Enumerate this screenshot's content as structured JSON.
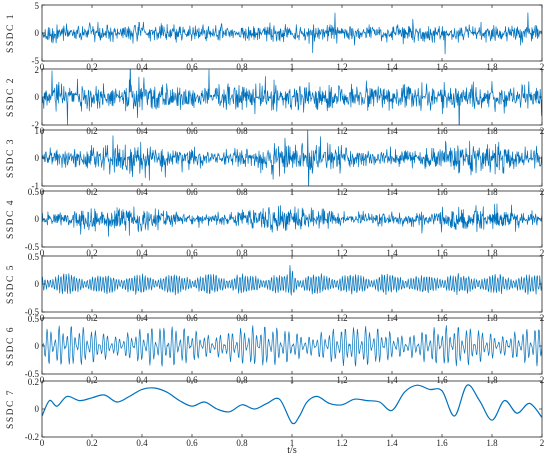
{
  "chart_data": [
    {
      "type": "line",
      "ylabel": "SSDC 1",
      "x_ticks": [
        "0",
        "0.2",
        "0.4",
        "0.6",
        "0.8",
        "1",
        "1.2",
        "1.4",
        "1.6",
        "1.8",
        "2"
      ],
      "y_ticks": [
        "-5",
        "0",
        "5"
      ],
      "xlim": [
        0,
        2
      ],
      "ylim": [
        -5,
        5
      ],
      "signal_amplitude": 1.3,
      "style": "broadband-noise-with-spikes",
      "color": "#0072BD"
    },
    {
      "type": "line",
      "ylabel": "SSDC 2",
      "x_ticks": [
        "0",
        "0.2",
        "0.4",
        "0.6",
        "0.8",
        "1",
        "1.2",
        "1.4",
        "1.6",
        "1.8",
        "2"
      ],
      "y_ticks": [
        "-2",
        "0",
        "2"
      ],
      "xlim": [
        0,
        2
      ],
      "ylim": [
        -2,
        2
      ],
      "signal_amplitude": 0.8,
      "style": "broadband-noise-with-spikes",
      "color": "#0072BD"
    },
    {
      "type": "line",
      "ylabel": "SSDC 3",
      "x_ticks": [
        "0",
        "0.2",
        "0.4",
        "0.6",
        "0.8",
        "1",
        "1.2",
        "1.4",
        "1.6",
        "1.8",
        "2"
      ],
      "y_ticks": [
        "-1",
        "0",
        "1"
      ],
      "xlim": [
        0,
        2
      ],
      "ylim": [
        -1,
        1
      ],
      "signal_amplitude": 0.45,
      "style": "broadband-noise",
      "color": "#0072BD"
    },
    {
      "type": "line",
      "ylabel": "SSDC 4",
      "x_ticks": [
        "0",
        "0.2",
        "0.4",
        "0.6",
        "0.8",
        "1",
        "1.2",
        "1.4",
        "1.6",
        "1.8",
        "2"
      ],
      "y_ticks": [
        "-0.5",
        "0",
        "0.5"
      ],
      "xlim": [
        0,
        2
      ],
      "ylim": [
        -0.5,
        0.5
      ],
      "signal_amplitude": 0.17,
      "style": "broadband-noise",
      "color": "#0072BD"
    },
    {
      "type": "line",
      "ylabel": "SSDC 5",
      "x_ticks": [
        "0",
        "0.2",
        "0.4",
        "0.6",
        "0.8",
        "1",
        "1.2",
        "1.4",
        "1.6",
        "1.8",
        "2"
      ],
      "y_ticks": [
        "-0.5",
        "0",
        "0.5"
      ],
      "xlim": [
        0,
        2
      ],
      "ylim": [
        -0.5,
        0.5
      ],
      "signal_amplitude": 0.2,
      "style": "bursty-oscillation",
      "color": "#0072BD"
    },
    {
      "type": "line",
      "ylabel": "SSDC 6",
      "x_ticks": [
        "0",
        "0.2",
        "0.4",
        "0.6",
        "0.8",
        "1",
        "1.2",
        "1.4",
        "1.6",
        "1.8",
        "2"
      ],
      "y_ticks": [
        "-0.5",
        "0",
        "0.5"
      ],
      "xlim": [
        0,
        2
      ],
      "ylim": [
        -0.5,
        0.5
      ],
      "signal_amplitude": 0.25,
      "style": "modulated-oscillation",
      "color": "#0072BD"
    },
    {
      "type": "line",
      "ylabel": "SSDC 7",
      "x_ticks": [
        "0",
        "0.2",
        "0.4",
        "0.6",
        "0.8",
        "1",
        "1.2",
        "1.4",
        "1.6",
        "1.8",
        "2"
      ],
      "y_ticks": [
        "-0.2",
        "0",
        "0.2"
      ],
      "xlim": [
        0,
        2
      ],
      "ylim": [
        -0.2,
        0.2
      ],
      "style": "smooth-low-frequency",
      "color": "#0072BD",
      "x": [
        0,
        0.03,
        0.06,
        0.1,
        0.15,
        0.2,
        0.25,
        0.3,
        0.35,
        0.4,
        0.45,
        0.5,
        0.55,
        0.6,
        0.65,
        0.7,
        0.75,
        0.8,
        0.85,
        0.9,
        0.95,
        1.0,
        1.03,
        1.06,
        1.1,
        1.15,
        1.2,
        1.25,
        1.3,
        1.35,
        1.4,
        1.45,
        1.5,
        1.55,
        1.6,
        1.65,
        1.7,
        1.75,
        1.8,
        1.85,
        1.9,
        1.95,
        2.0
      ],
      "y": [
        -0.05,
        0.06,
        0.02,
        0.09,
        0.06,
        0.08,
        0.1,
        0.05,
        0.09,
        0.14,
        0.15,
        0.12,
        0.06,
        0.02,
        0.05,
        0.0,
        -0.02,
        0.03,
        0.0,
        0.04,
        0.07,
        -0.1,
        -0.05,
        0.05,
        0.09,
        0.04,
        0.03,
        0.07,
        0.06,
        0.05,
        -0.01,
        0.12,
        0.17,
        0.14,
        0.13,
        -0.05,
        0.17,
        0.06,
        -0.08,
        0.06,
        -0.03,
        0.04,
        -0.06
      ]
    }
  ],
  "xlabel": "t/s"
}
